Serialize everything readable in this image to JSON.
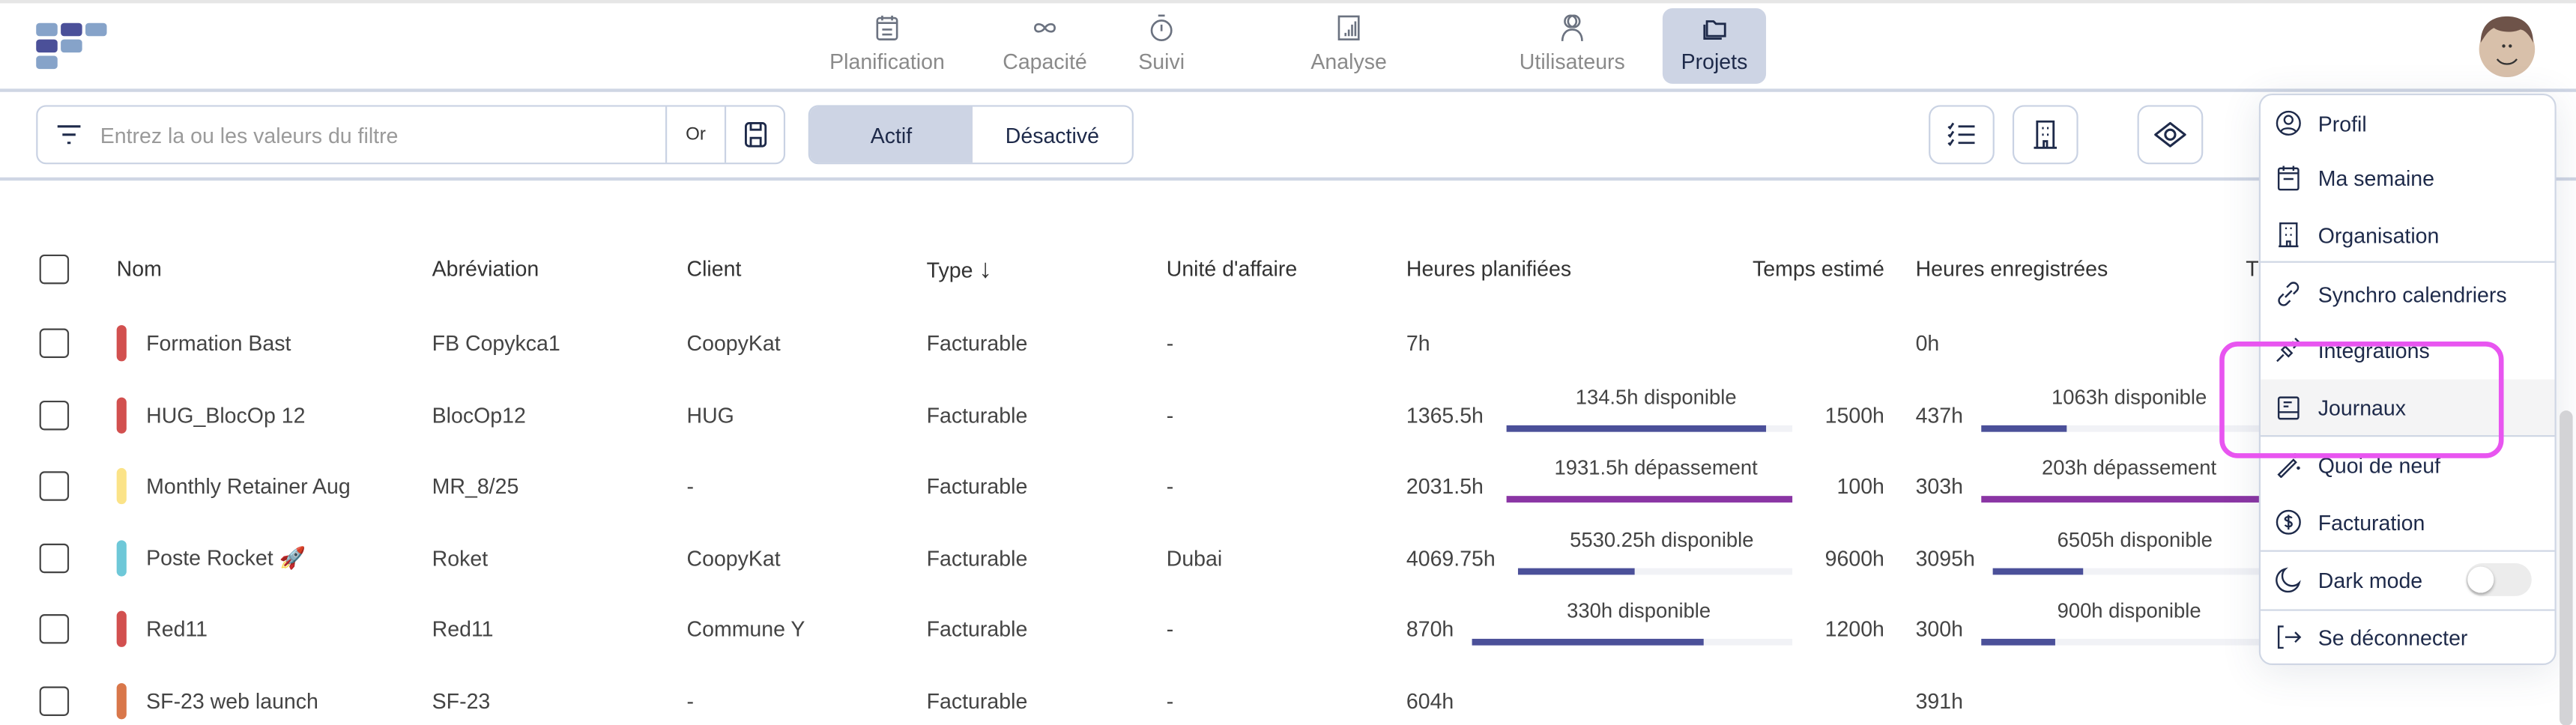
{
  "nav": [
    {
      "label": "Planification",
      "icon": "calendar-icon"
    },
    {
      "label": "Capacité",
      "icon": "infinity-icon"
    },
    {
      "label": "Suivi",
      "icon": "stopwatch-icon"
    },
    {
      "label": "Analyse",
      "icon": "bar-chart-icon"
    },
    {
      "label": "Utilisateurs",
      "icon": "users-icon"
    },
    {
      "label": "Projets",
      "icon": "folder-icon",
      "active": true
    }
  ],
  "filter": {
    "placeholder": "Entrez la ou les valeurs du filtre",
    "operator": "Or"
  },
  "status_toggle": {
    "active": "Actif",
    "inactive": "Désactivé",
    "selected": "Actif"
  },
  "table": {
    "headers": {
      "name": "Nom",
      "abbr": "Abréviation",
      "client": "Client",
      "type": "Type",
      "unit": "Unité d'affaire",
      "planned": "Heures planifiées",
      "estimated": "Temps estimé",
      "recorded": "Heures enregistrées",
      "truncated": "T"
    },
    "rows": [
      {
        "color": "#d2504f",
        "name": "Formation Bast",
        "abbr": "FB Copykca1",
        "client": "CoopyKat",
        "type": "Facturable",
        "unit": "-",
        "planned": "7h",
        "recorded": "0h"
      },
      {
        "color": "#d2504f",
        "name": "HUG_BlocOp 12",
        "abbr": "BlocOp12",
        "client": "HUG",
        "type": "Facturable",
        "unit": "-",
        "planned": "1365.5h",
        "planned_label": "134.5h disponible",
        "planned_fraction": 0.91,
        "planned_over": false,
        "estimated": "1500h",
        "recorded": "437h",
        "recorded_label": "1063h disponible",
        "recorded_fraction": 0.29,
        "recorded_over": false
      },
      {
        "color": "#fbe388",
        "name": "Monthly Retainer Aug",
        "abbr": "MR_8/25",
        "client": "-",
        "type": "Facturable",
        "unit": "-",
        "planned": "2031.5h",
        "planned_label": "1931.5h dépassement",
        "planned_fraction": 1,
        "planned_over": true,
        "estimated": "100h",
        "recorded": "303h",
        "recorded_label": "203h dépassement",
        "recorded_fraction": 1,
        "recorded_over": true
      },
      {
        "color": "#6ec8d8",
        "name": "Poste Rocket 🚀",
        "abbr": "Roket",
        "client": "CoopyKat",
        "type": "Facturable",
        "unit": "Dubai",
        "planned": "4069.75h",
        "planned_label": "5530.25h disponible",
        "planned_fraction": 0.424,
        "planned_over": false,
        "estimated": "9600h",
        "recorded": "3095h",
        "recorded_label": "6505h disponible",
        "recorded_fraction": 0.32,
        "recorded_over": false
      },
      {
        "color": "#d2504f",
        "name": "Red11",
        "abbr": "Red11",
        "client": "Commune Y",
        "type": "Facturable",
        "unit": "-",
        "planned": "870h",
        "planned_label": "330h disponible",
        "planned_fraction": 0.725,
        "planned_over": false,
        "estimated": "1200h",
        "recorded": "300h",
        "recorded_label": "900h disponible",
        "recorded_fraction": 0.25,
        "recorded_over": false
      },
      {
        "color": "#d9774a",
        "name": "SF-23 web launch",
        "abbr": "SF-23",
        "client": "-",
        "type": "Facturable",
        "unit": "-",
        "planned": "604h",
        "recorded": "391h"
      }
    ]
  },
  "menu": {
    "items": [
      {
        "label": "Profil",
        "icon": "user-circle-icon"
      },
      {
        "label": "Ma semaine",
        "icon": "calendar-icon"
      },
      {
        "label": "Organisation",
        "icon": "building-icon"
      },
      {
        "label": "Synchro calendriers",
        "icon": "link-icon"
      },
      {
        "label": "Intégrations",
        "icon": "plug-icon"
      },
      {
        "label": "Journaux",
        "icon": "journal-icon"
      },
      {
        "label": "Quoi de neuf",
        "icon": "magic-wand-icon"
      },
      {
        "label": "Facturation",
        "icon": "dollar-circle-icon"
      },
      {
        "label": "Dark mode",
        "icon": "moon-icon",
        "toggle": false
      },
      {
        "label": "Se déconnecter",
        "icon": "logout-icon"
      }
    ]
  },
  "colors": {
    "accent": "#4b5099",
    "overflow": "#8a35a4",
    "highlight": "#e855f0",
    "active_bg": "#cdd4e4"
  }
}
